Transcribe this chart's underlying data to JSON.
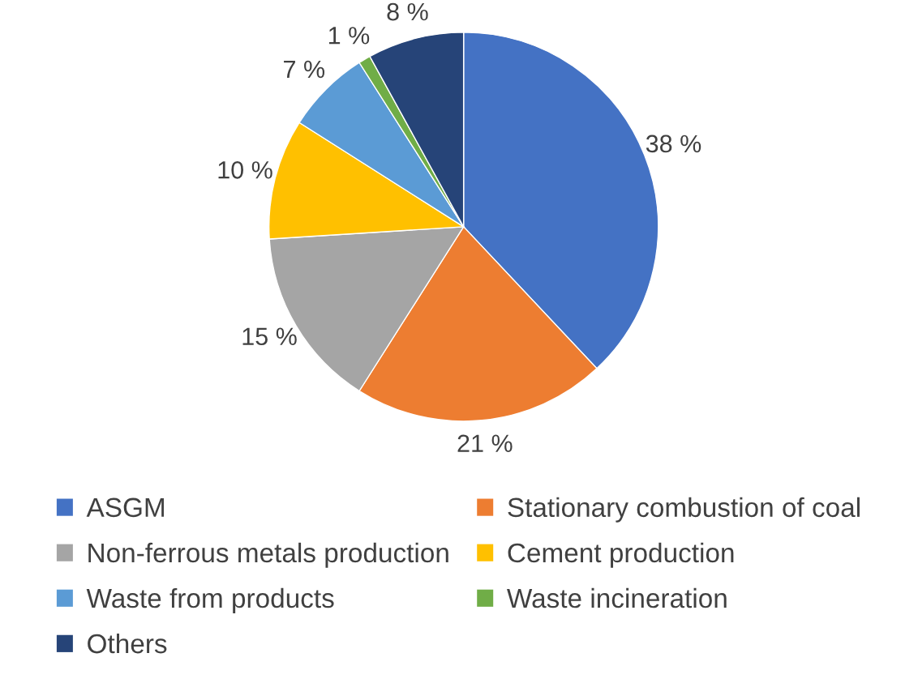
{
  "chart_data": {
    "type": "pie",
    "categories": [
      "ASGM",
      "Stationary combustion of coal",
      "Non-ferrous metals production",
      "Cement production",
      "Waste from products",
      "Waste incineration",
      "Others"
    ],
    "values": [
      38,
      21,
      15,
      10,
      7,
      1,
      8
    ],
    "colors": [
      "#4472c4",
      "#ed7d31",
      "#a5a5a5",
      "#ffc000",
      "#5b9bd5",
      "#70ad47",
      "#264478"
    ],
    "value_labels": [
      "38 %",
      "21 %",
      "15 %",
      "10 %",
      "7 %",
      "1 %",
      "8 %"
    ],
    "legend": "bottom"
  }
}
